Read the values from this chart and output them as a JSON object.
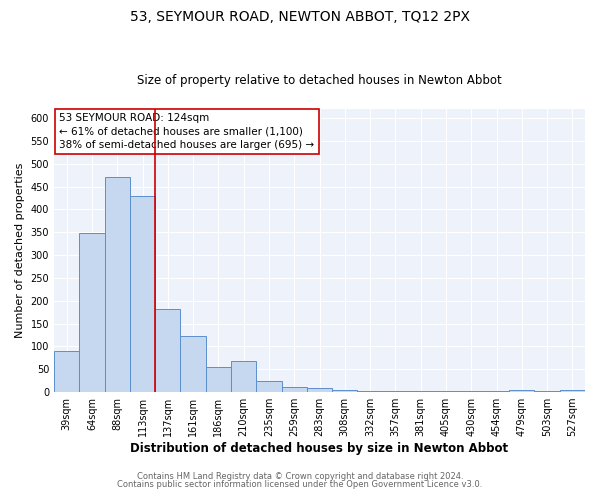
{
  "title": "53, SEYMOUR ROAD, NEWTON ABBOT, TQ12 2PX",
  "subtitle": "Size of property relative to detached houses in Newton Abbot",
  "xlabel": "Distribution of detached houses by size in Newton Abbot",
  "ylabel": "Number of detached properties",
  "footer_line1": "Contains HM Land Registry data © Crown copyright and database right 2024.",
  "footer_line2": "Contains public sector information licensed under the Open Government Licence v3.0.",
  "bin_labels": [
    "39sqm",
    "64sqm",
    "88sqm",
    "113sqm",
    "137sqm",
    "161sqm",
    "186sqm",
    "210sqm",
    "235sqm",
    "259sqm",
    "283sqm",
    "308sqm",
    "332sqm",
    "357sqm",
    "381sqm",
    "405sqm",
    "430sqm",
    "454sqm",
    "479sqm",
    "503sqm",
    "527sqm"
  ],
  "bar_heights": [
    90,
    348,
    472,
    430,
    183,
    122,
    56,
    67,
    24,
    12,
    8,
    5,
    2,
    2,
    2,
    2,
    2,
    2,
    5,
    2,
    5
  ],
  "bar_color": "#c5d8f0",
  "bar_edge_color": "#5b8fcc",
  "bar_edge_width": 0.7,
  "vline_x_index": 3,
  "vline_color": "#cc0000",
  "vline_linewidth": 1.2,
  "annotation_text_line1": "53 SEYMOUR ROAD: 124sqm",
  "annotation_text_line2": "← 61% of detached houses are smaller (1,100)",
  "annotation_text_line3": "38% of semi-detached houses are larger (695) →",
  "annotation_fontsize": 7.5,
  "title_fontsize": 10,
  "subtitle_fontsize": 8.5,
  "xlabel_fontsize": 8.5,
  "ylabel_fontsize": 8,
  "tick_fontsize": 7,
  "ylim": [
    0,
    620
  ],
  "yticks": [
    0,
    50,
    100,
    150,
    200,
    250,
    300,
    350,
    400,
    450,
    500,
    550,
    600
  ],
  "figure_bg_color": "#ffffff",
  "plot_bg_color": "#eef2fa",
  "grid_color": "#ffffff",
  "annotation_box_bg": "#ffffff",
  "annotation_box_edge": "#cc0000",
  "footer_fontsize": 6.0,
  "footer_color": "#666666"
}
